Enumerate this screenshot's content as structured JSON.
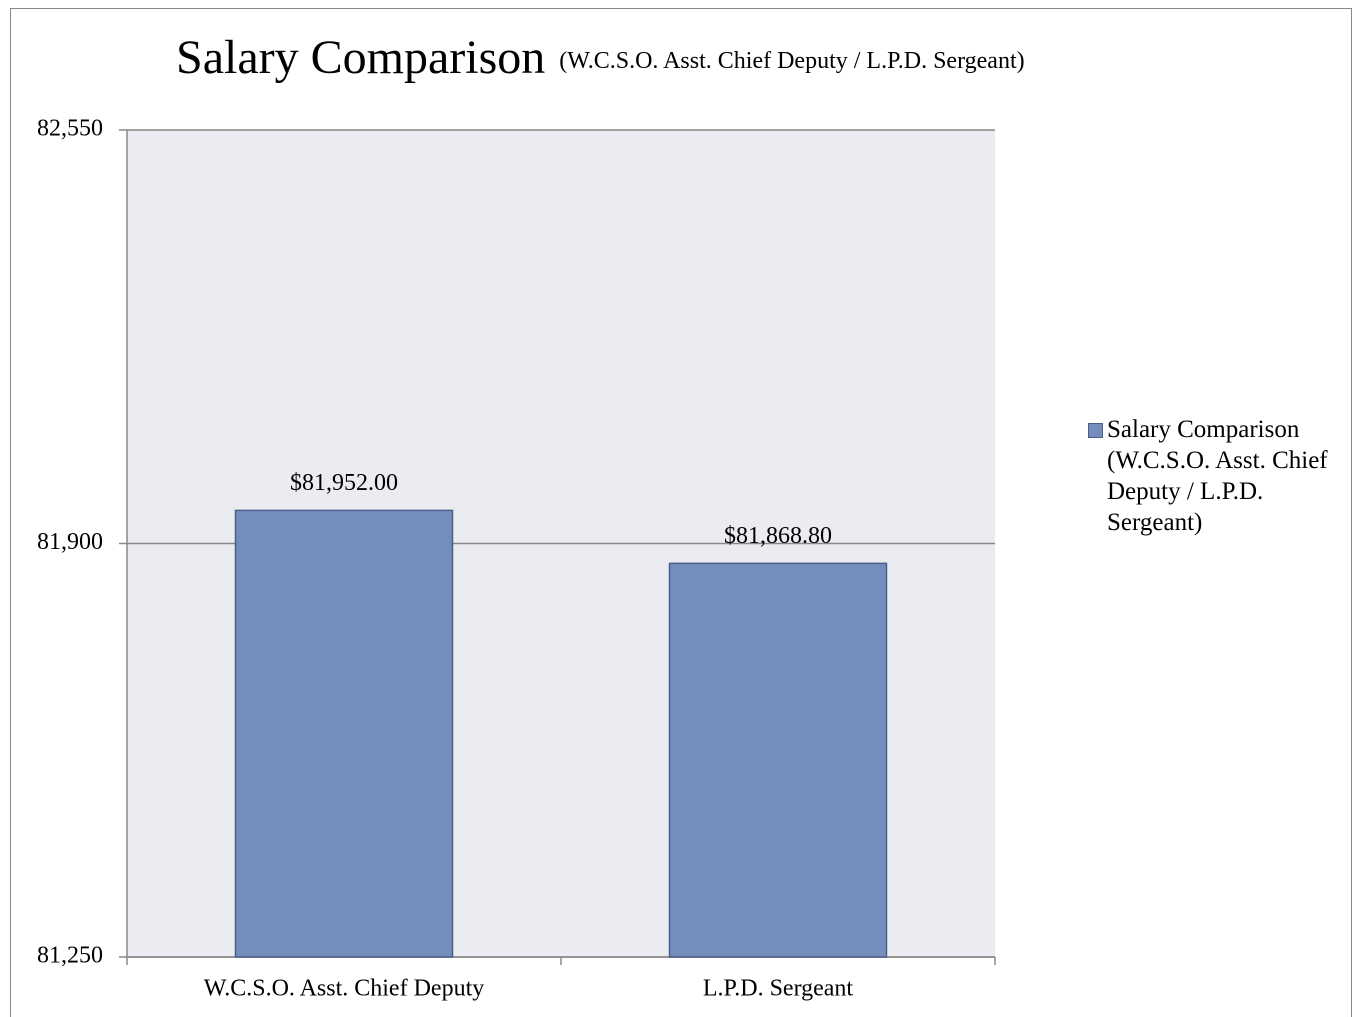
{
  "chart_data": {
    "type": "bar",
    "title": "Salary Comparison",
    "subtitle": "(W.C.S.O. Asst. Chief Deputy / L.P.D. Sergeant)",
    "categories": [
      "W.C.S.O. Asst. Chief Deputy",
      "L.P.D. Sergeant"
    ],
    "series": [
      {
        "name": "Salary Comparison (W.C.S.O. Asst. Chief Deputy / L.P.D. Sergeant)",
        "color": "#758dbd",
        "values": [
          81952,
          81868.8
        ],
        "value_labels": [
          "$81,952.00",
          "$81,868.80"
        ]
      }
    ],
    "ylim": [
      81250,
      82550
    ],
    "yticks": [
      {
        "value": 81250,
        "label": "81,250"
      },
      {
        "value": 81900,
        "label": "81,900"
      },
      {
        "value": 82550,
        "label": "82,550"
      }
    ],
    "grid": true,
    "legend": "right"
  }
}
